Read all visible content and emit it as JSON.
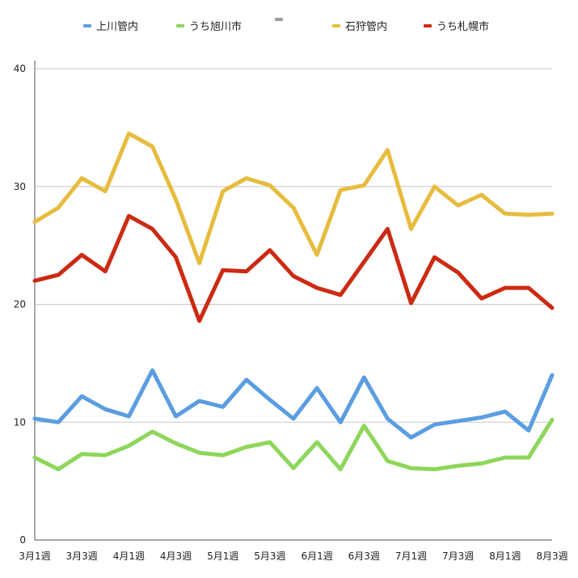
{
  "chart_data": {
    "type": "line",
    "title": "",
    "xlabel": "",
    "ylabel": "",
    "ylim": [
      0,
      40
    ],
    "yticks": [
      0,
      10,
      20,
      30,
      40
    ],
    "grid": true,
    "legend_position": "top",
    "x_tick_labels": [
      "3月1週",
      "3月3週",
      "4月1週",
      "4月3週",
      "5月1週",
      "5月3週",
      "6月1週",
      "6月3週",
      "7月1週",
      "7月3週",
      "8月1週",
      "8月3週"
    ],
    "series": [
      {
        "name": "上川管内",
        "color": "#5b9de0",
        "values": [
          10.3,
          10.0,
          12.2,
          11.1,
          10.5,
          14.4,
          10.5,
          11.8,
          11.3,
          13.6,
          11.9,
          10.3,
          12.9,
          10.0,
          13.8,
          10.3,
          8.7,
          9.8,
          10.1,
          10.4,
          10.9,
          9.3,
          14.0
        ]
      },
      {
        "name": "うち旭川市",
        "color": "#8ed65a",
        "values": [
          7.0,
          6.0,
          7.3,
          7.2,
          8.0,
          9.2,
          8.2,
          7.4,
          7.2,
          7.9,
          8.3,
          6.1,
          8.3,
          6.0,
          9.7,
          6.7,
          6.1,
          6.0,
          6.3,
          6.5,
          7.0,
          7.0,
          10.2
        ]
      },
      {
        "name": "",
        "color": "#9e9e9e",
        "values": []
      },
      {
        "name": "石狩管内",
        "color": "#e7bc3e",
        "values": [
          27.0,
          28.2,
          30.7,
          29.6,
          34.5,
          33.4,
          28.9,
          23.5,
          29.6,
          30.7,
          30.1,
          28.2,
          24.2,
          29.7,
          30.1,
          33.1,
          26.4,
          30.0,
          28.4,
          29.3,
          27.7,
          27.6,
          27.7
        ]
      },
      {
        "name": "うち札幌市",
        "color": "#cc2a12",
        "values": [
          22.0,
          22.5,
          24.2,
          22.8,
          27.5,
          26.4,
          24.0,
          18.6,
          22.9,
          22.8,
          24.6,
          22.4,
          21.4,
          20.8,
          23.6,
          26.4,
          20.1,
          24.0,
          22.7,
          20.5,
          21.4,
          21.4,
          19.7
        ]
      }
    ]
  },
  "legend": {
    "series_label_empty": "-"
  }
}
